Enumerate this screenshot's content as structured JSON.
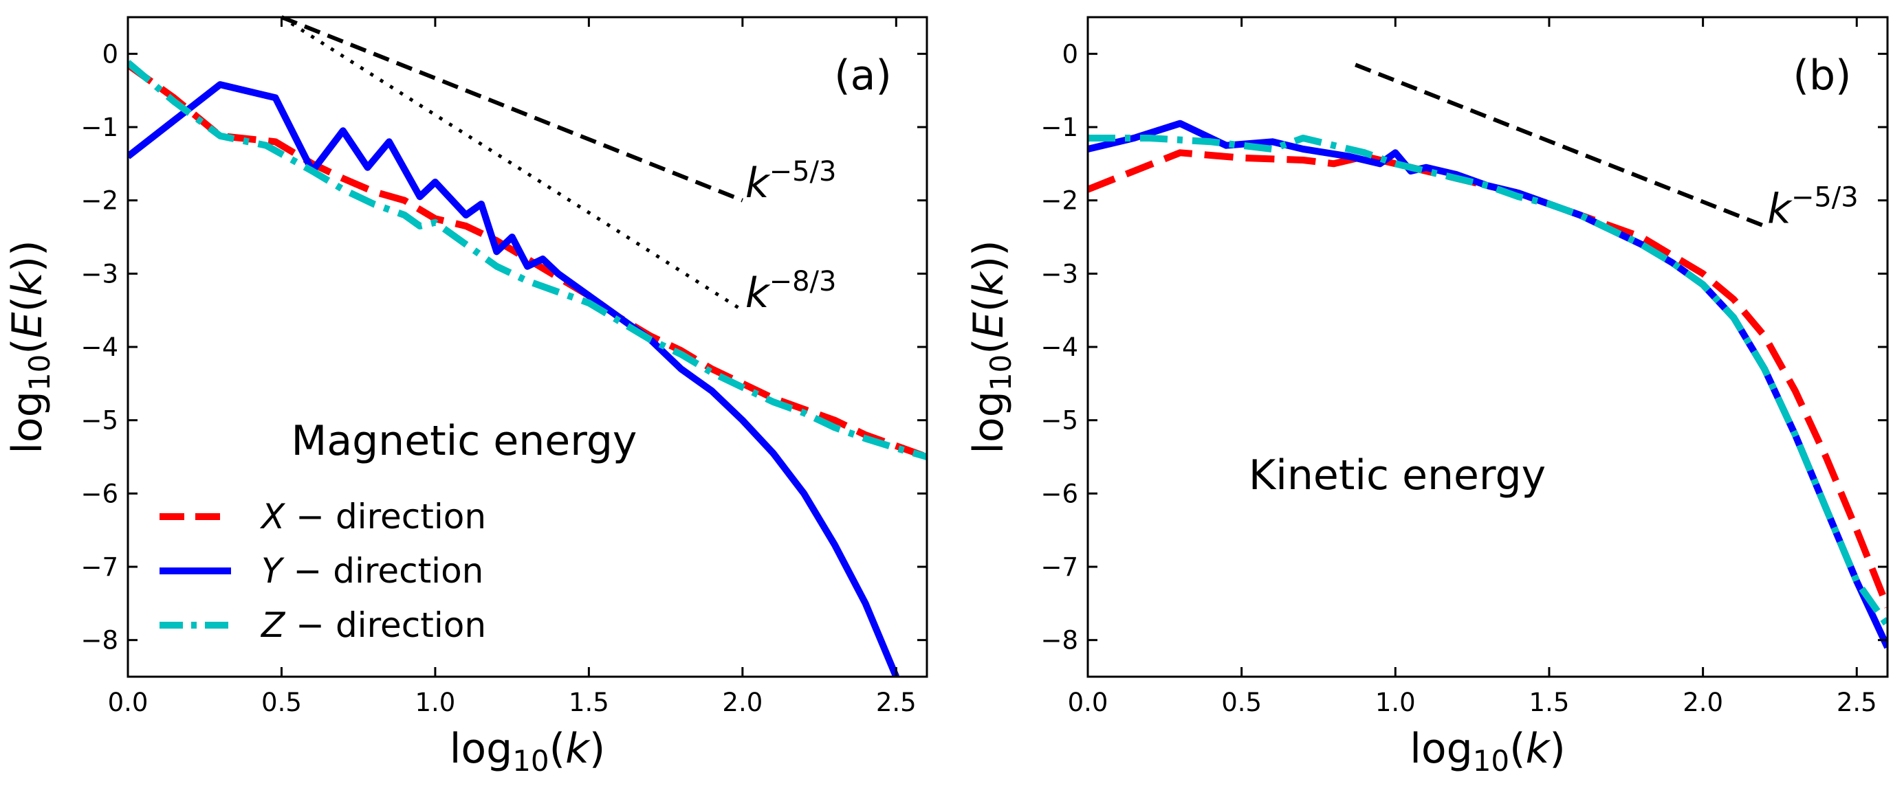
{
  "chart_data": [
    {
      "type": "line",
      "panel_label": "(a)",
      "annotation": "Magnetic energy",
      "xlabel": "log10(k)",
      "ylabel": "log10(E(k))",
      "xlim": [
        0.0,
        2.6
      ],
      "ylim": [
        -8.5,
        0.5
      ],
      "xticks": [
        0.0,
        0.5,
        1.0,
        1.5,
        2.0,
        2.5
      ],
      "xtick_labels": [
        "0.0",
        "0.5",
        "1.0",
        "1.5",
        "2.0",
        "2.5"
      ],
      "yticks": [
        0,
        -1,
        -2,
        -3,
        -4,
        -5,
        -6,
        -7,
        -8
      ],
      "ytick_labels": [
        "0",
        "−1",
        "−2",
        "−3",
        "−4",
        "−5",
        "−6",
        "−7",
        "−8"
      ],
      "legend": {
        "placement": "lower-left"
      },
      "series": [
        {
          "name": "X − direction",
          "legend_var": "X",
          "legend_rest": " − direction",
          "style": "dashed",
          "color": "#ff0000",
          "x": [
            0.0,
            0.15,
            0.3,
            0.48,
            0.6,
            0.7,
            0.8,
            0.9,
            1.0,
            1.1,
            1.2,
            1.3,
            1.4,
            1.5,
            1.6,
            1.7,
            1.8,
            1.9,
            2.0,
            2.1,
            2.2,
            2.3,
            2.4,
            2.5,
            2.6
          ],
          "y": [
            -0.15,
            -0.6,
            -1.12,
            -1.2,
            -1.5,
            -1.7,
            -1.88,
            -2.0,
            -2.25,
            -2.35,
            -2.55,
            -2.8,
            -3.05,
            -3.3,
            -3.6,
            -3.85,
            -4.05,
            -4.3,
            -4.5,
            -4.7,
            -4.85,
            -5.0,
            -5.2,
            -5.35,
            -5.5
          ]
        },
        {
          "name": "Y − direction",
          "legend_var": "Y",
          "legend_rest": " − direction",
          "style": "solid",
          "color": "#0000ff",
          "x": [
            0.0,
            0.3,
            0.48,
            0.6,
            0.7,
            0.78,
            0.85,
            0.95,
            1.0,
            1.1,
            1.15,
            1.2,
            1.25,
            1.3,
            1.35,
            1.4,
            1.5,
            1.6,
            1.7,
            1.8,
            1.9,
            2.0,
            2.1,
            2.2,
            2.3,
            2.4,
            2.5
          ],
          "y": [
            -1.4,
            -0.42,
            -0.6,
            -1.6,
            -1.05,
            -1.55,
            -1.2,
            -1.95,
            -1.75,
            -2.2,
            -2.05,
            -2.7,
            -2.5,
            -2.9,
            -2.8,
            -3.0,
            -3.3,
            -3.6,
            -3.9,
            -4.3,
            -4.6,
            -5.0,
            -5.45,
            -6.0,
            -6.7,
            -7.5,
            -8.5
          ]
        },
        {
          "name": "Z − direction",
          "legend_var": "Z",
          "legend_rest": " − direction",
          "style": "dashdot",
          "color": "#00bfbf",
          "x": [
            0.0,
            0.15,
            0.3,
            0.45,
            0.6,
            0.7,
            0.8,
            0.9,
            0.95,
            1.0,
            1.1,
            1.2,
            1.3,
            1.4,
            1.5,
            1.6,
            1.7,
            1.8,
            1.9,
            2.0,
            2.1,
            2.2,
            2.3,
            2.4,
            2.5,
            2.6
          ],
          "y": [
            -0.12,
            -0.65,
            -1.12,
            -1.25,
            -1.6,
            -1.85,
            -2.05,
            -2.2,
            -2.35,
            -2.3,
            -2.6,
            -2.9,
            -3.1,
            -3.25,
            -3.4,
            -3.65,
            -3.9,
            -4.1,
            -4.35,
            -4.55,
            -4.75,
            -4.9,
            -5.1,
            -5.25,
            -5.38,
            -5.5
          ]
        }
      ],
      "reference_lines": [
        {
          "label_base": "k",
          "label_exp": "−5/3",
          "style": "dashed",
          "x": [
            0.5,
            2.0
          ],
          "y": [
            0.5,
            -2.0
          ],
          "label_at": [
            2.0,
            -1.75
          ]
        },
        {
          "label_base": "k",
          "label_exp": "−8/3",
          "style": "dotted",
          "x": [
            0.5,
            2.0
          ],
          "y": [
            0.5,
            -3.5
          ],
          "label_at": [
            2.0,
            -3.25
          ]
        }
      ]
    },
    {
      "type": "line",
      "panel_label": "(b)",
      "annotation": "Kinetic energy",
      "xlabel": "log10(k)",
      "ylabel": "log10(E(k))",
      "xlim": [
        0.0,
        2.6
      ],
      "ylim": [
        -8.5,
        0.5
      ],
      "xticks": [
        0.0,
        0.5,
        1.0,
        1.5,
        2.0,
        2.5
      ],
      "xtick_labels": [
        "0.0",
        "0.5",
        "1.0",
        "1.5",
        "2.0",
        "2.5"
      ],
      "yticks": [
        0,
        -1,
        -2,
        -3,
        -4,
        -5,
        -6,
        -7,
        -8
      ],
      "ytick_labels": [
        "0",
        "−1",
        "−2",
        "−3",
        "−4",
        "−5",
        "−6",
        "−7",
        "−8"
      ],
      "series": [
        {
          "name": "X − direction",
          "style": "dashed",
          "color": "#ff0000",
          "x": [
            0.0,
            0.3,
            0.5,
            0.7,
            0.8,
            0.9,
            1.0,
            1.2,
            1.4,
            1.6,
            1.8,
            1.9,
            2.0,
            2.1,
            2.2,
            2.3,
            2.4,
            2.5,
            2.6
          ],
          "y": [
            -1.85,
            -1.35,
            -1.42,
            -1.45,
            -1.5,
            -1.4,
            -1.5,
            -1.7,
            -1.9,
            -2.2,
            -2.5,
            -2.75,
            -3.0,
            -3.35,
            -3.85,
            -4.6,
            -5.5,
            -6.5,
            -7.55
          ]
        },
        {
          "name": "Y − direction",
          "style": "solid",
          "color": "#0000ff",
          "x": [
            0.0,
            0.15,
            0.3,
            0.45,
            0.6,
            0.7,
            0.85,
            0.95,
            1.0,
            1.05,
            1.1,
            1.2,
            1.3,
            1.4,
            1.5,
            1.6,
            1.7,
            1.8,
            1.9,
            2.0,
            2.1,
            2.2,
            2.3,
            2.4,
            2.5,
            2.6
          ],
          "y": [
            -1.3,
            -1.15,
            -0.95,
            -1.25,
            -1.2,
            -1.3,
            -1.4,
            -1.5,
            -1.35,
            -1.6,
            -1.55,
            -1.65,
            -1.8,
            -1.9,
            -2.05,
            -2.2,
            -2.4,
            -2.6,
            -2.85,
            -3.15,
            -3.6,
            -4.3,
            -5.2,
            -6.2,
            -7.2,
            -8.1
          ]
        },
        {
          "name": "Z − direction",
          "style": "dashdot",
          "color": "#00bfbf",
          "x": [
            0.0,
            0.2,
            0.4,
            0.6,
            0.7,
            0.8,
            0.9,
            1.0,
            1.1,
            1.2,
            1.3,
            1.4,
            1.5,
            1.6,
            1.7,
            1.8,
            1.9,
            2.0,
            2.1,
            2.2,
            2.3,
            2.4,
            2.5,
            2.6
          ],
          "y": [
            -1.15,
            -1.15,
            -1.2,
            -1.3,
            -1.15,
            -1.25,
            -1.35,
            -1.5,
            -1.6,
            -1.7,
            -1.8,
            -1.95,
            -2.05,
            -2.2,
            -2.4,
            -2.6,
            -2.85,
            -3.15,
            -3.6,
            -4.3,
            -5.2,
            -6.2,
            -7.2,
            -7.8
          ]
        }
      ],
      "reference_lines": [
        {
          "label_base": "k",
          "label_exp": "−5/3",
          "style": "dashed",
          "x": [
            0.87,
            2.2
          ],
          "y": [
            -0.15,
            -2.35
          ],
          "label_at": [
            2.2,
            -2.1
          ]
        }
      ]
    }
  ]
}
